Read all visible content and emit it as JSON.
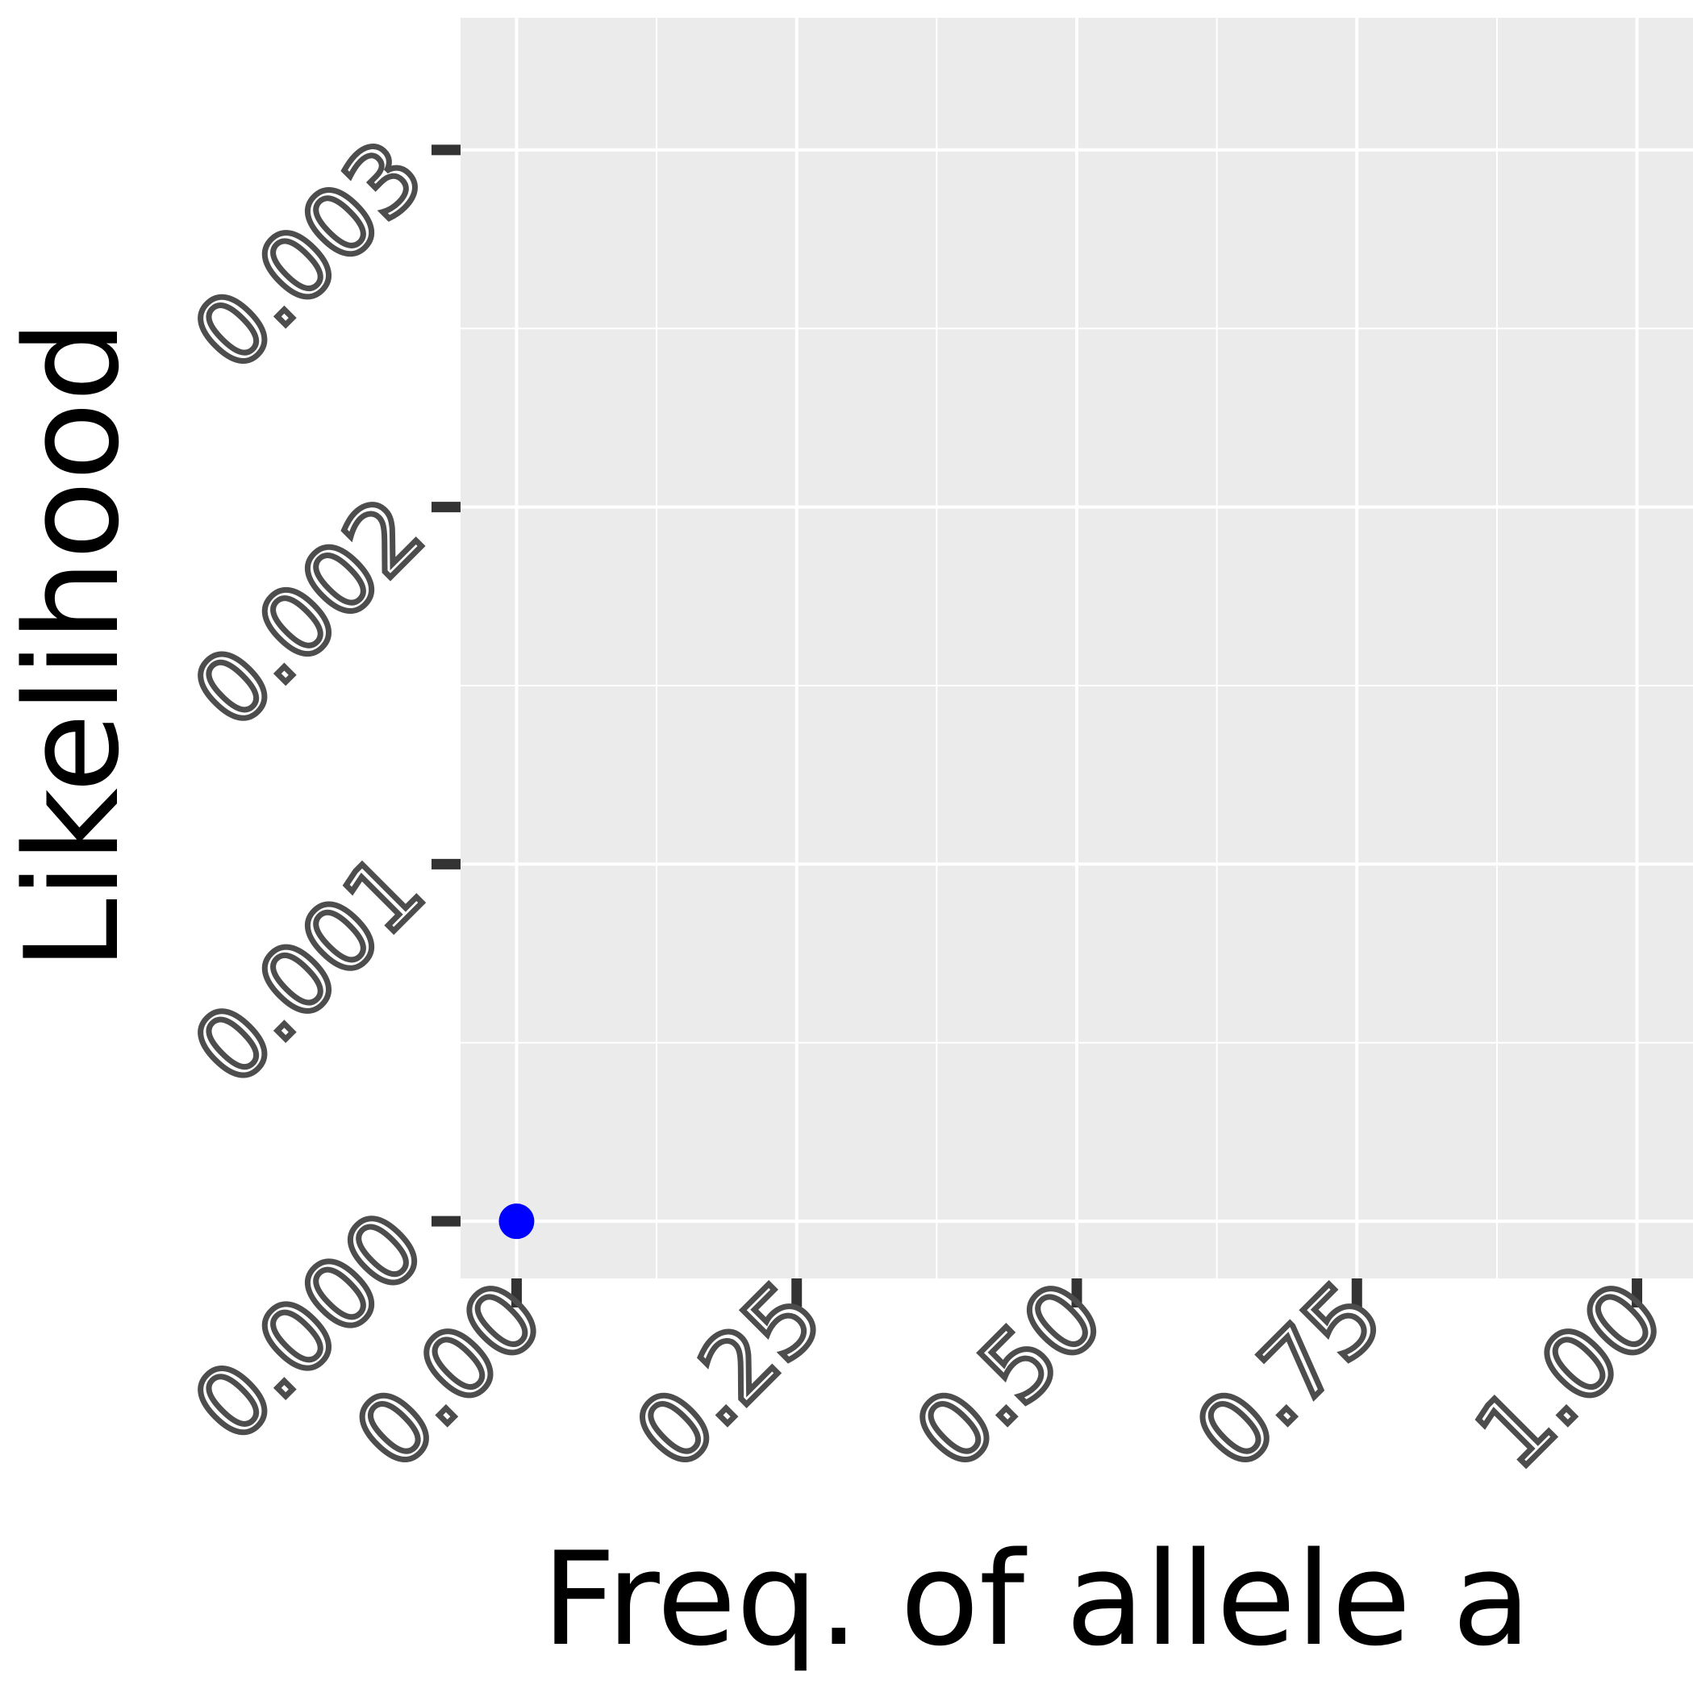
{
  "chart_data": {
    "type": "scatter",
    "title": "",
    "xlabel": "Freq. of allele a",
    "ylabel": "Likelihood",
    "x_ticks": [
      "0.00",
      "0.25",
      "0.50",
      "0.75",
      "1.00"
    ],
    "y_ticks": [
      "0.000",
      "0.001",
      "0.002",
      "0.003"
    ],
    "xlim": [
      -0.05,
      1.05
    ],
    "ylim": [
      -0.00016,
      0.00337
    ],
    "grid": true,
    "legend": "none",
    "points": [
      {
        "x": 0.0,
        "y": 0.0
      }
    ],
    "point_color": "#0000ff",
    "panel_color": "#ebebeb",
    "gridline_color": "#ffffff"
  }
}
